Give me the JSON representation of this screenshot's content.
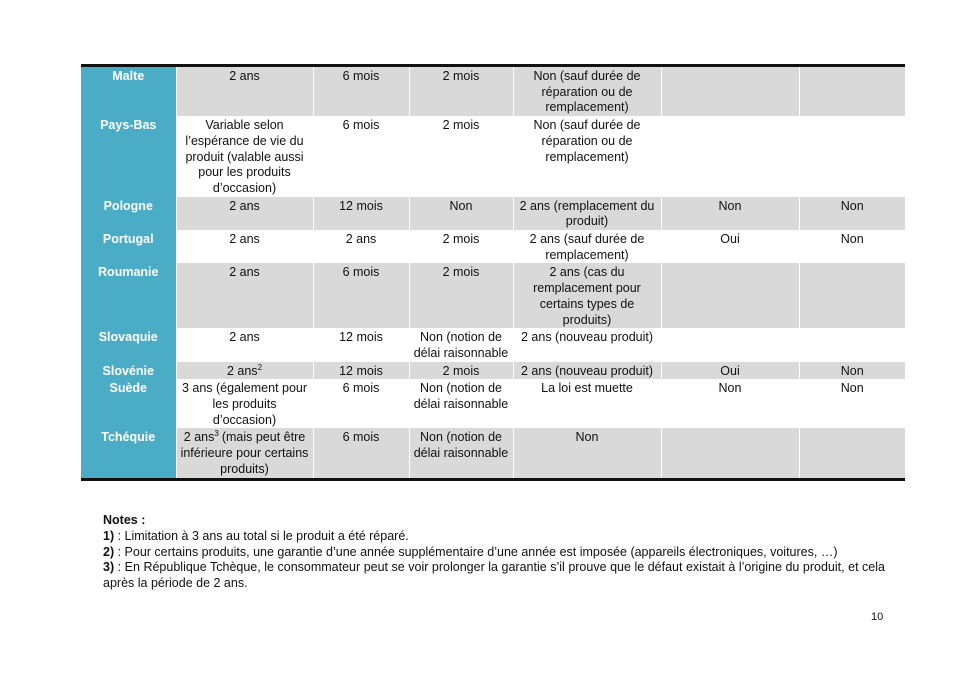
{
  "table": {
    "rows": [
      [
        "Malte",
        "2 ans",
        "6 mois",
        "2 mois",
        "Non (sauf durée de réparation ou de remplacement)",
        null,
        null
      ],
      [
        "Pays-Bas",
        "Variable selon l’espérance de vie du produit (valable aussi pour les produits d’occasion)",
        "6 mois",
        "2 mois",
        "Non (sauf durée de réparation ou de remplacement)",
        null,
        null
      ],
      [
        "Pologne",
        "2 ans",
        "12 mois",
        "Non",
        "2 ans (remplacement du produit)",
        "Non",
        "Non"
      ],
      [
        "Portugal",
        "2 ans",
        "2 ans",
        "2 mois",
        "2 ans (sauf durée de remplacement)",
        "Oui",
        "Non"
      ],
      [
        "Roumanie",
        "2 ans",
        "6 mois",
        "2 mois",
        "2 ans (cas du remplacement pour certains types de produits)",
        null,
        null
      ],
      [
        "Slovaquie",
        "2 ans",
        "12 mois",
        "Non (notion de délai raisonnable",
        "2 ans (nouveau produit)",
        null,
        null
      ],
      [
        "Slovénie",
        {
          "text": "2 ans",
          "sup": "2"
        },
        "12 mois",
        "2 mois",
        "2 ans (nouveau produit)",
        "Oui",
        "Non"
      ],
      [
        "Suède",
        "3 ans (également pour les produits d’occasion)",
        "6 mois",
        "Non (notion de délai raisonnable",
        "La loi est muette",
        "Non",
        "Non"
      ],
      [
        "Tchéquie",
        {
          "text": "2 ans",
          "sup": "3",
          "after": "(mais peut être inférieure pour certains produits)"
        },
        "6 mois",
        "Non (notion de délai raisonnable",
        "Non",
        null,
        null
      ]
    ]
  },
  "notes": {
    "heading": "Notes :",
    "items": [
      {
        "marker": "1)",
        "text": " : Limitation à 3 ans au total si le produit a été réparé."
      },
      {
        "marker": "2)",
        "text": " : Pour certains produits, une garantie d’une année supplémentaire d’une année est imposée (appareils électroniques, voitures, …)"
      },
      {
        "marker": "3)",
        "text": " : En République Tchèque, le consommateur peut se voir prolonger la garantie s’il prouve que le défaut existait à l’origine du produit, et cela après la période de 2 ans."
      }
    ]
  },
  "page_number": "10"
}
